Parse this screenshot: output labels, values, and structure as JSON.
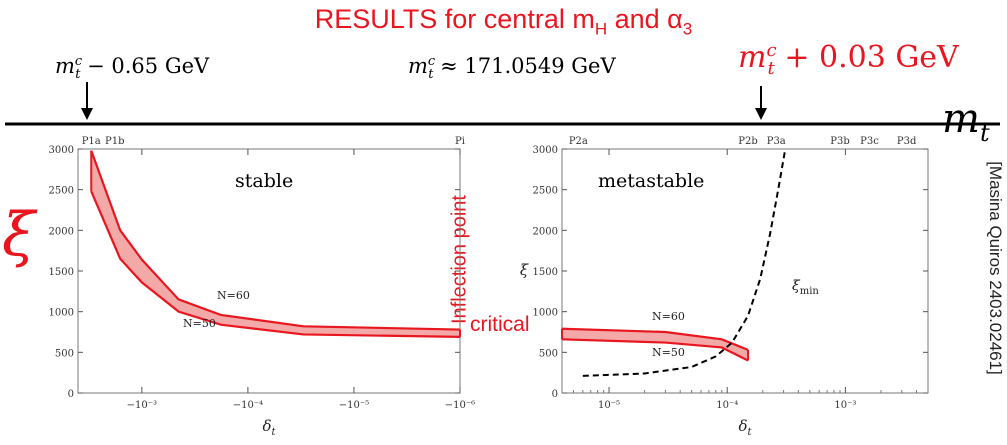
{
  "header": {
    "title_main": "RESULTS for central m",
    "title_sub1": "H",
    "title_mid": " and ",
    "title_alpha": "α",
    "title_sub2": "3"
  },
  "mt_axis": {
    "label_left": "− 0.65 GeV",
    "label_mid": "≈ 171.0549 GeV",
    "label_right": "+ 0.03 GeV",
    "axis_symbol": "m",
    "axis_sub": "t",
    "mtc_base": "m",
    "mtc_sup": "c",
    "mtc_sub": "t"
  },
  "annotations": {
    "xi_left": "ξ",
    "inflection": "Inflection point",
    "critical": "critical",
    "reference": "[Masina Quiros 2403.02461]"
  },
  "colors": {
    "accent": "#e8161f",
    "band_fill": "#f4a9a9",
    "band_edge": "#e8161f",
    "dashed": "#000000"
  },
  "chart_data": [
    {
      "type": "area",
      "panel_label": "stable",
      "xlabel": "δ",
      "xlabel_sub": "t",
      "ylabel": "",
      "x_scale": "-log",
      "xlim": [
        -0.004,
        -1e-06
      ],
      "ylim": [
        0,
        3000
      ],
      "y_ticks": [
        "0",
        "500",
        "1000",
        "1500",
        "2000",
        "2500",
        "3000"
      ],
      "x_ticks": [
        {
          "x": -0.001,
          "label": "−10⁻³"
        },
        {
          "x": -0.0001,
          "label": "−10⁻⁴"
        },
        {
          "x": -1e-05,
          "label": "−10⁻⁵"
        },
        {
          "x": -1e-06,
          "label": "−10⁻⁶"
        }
      ],
      "top_labels": [
        {
          "x": -0.003,
          "label": "P1a"
        },
        {
          "x": -0.0018,
          "label": "P1b"
        },
        {
          "x": -1e-06,
          "label": "Pi"
        }
      ],
      "series": [
        {
          "name": "N=60",
          "x": [
            -0.003,
            -0.0016,
            -0.001,
            -0.00045,
            -0.00018,
            -3e-05,
            -1e-06
          ],
          "y": [
            2980,
            2000,
            1640,
            1150,
            960,
            820,
            780
          ]
        },
        {
          "name": "N=50",
          "x": [
            -0.003,
            -0.0016,
            -0.001,
            -0.00045,
            -0.00018,
            -3e-05,
            -1e-06
          ],
          "y": [
            2480,
            1650,
            1360,
            1000,
            840,
            720,
            690
          ]
        }
      ]
    },
    {
      "type": "area",
      "panel_label": "metastable",
      "xlabel": "δ",
      "xlabel_sub": "t",
      "ylabel": "ξ",
      "x_scale": "log",
      "xlim": [
        4e-06,
        0.005
      ],
      "ylim": [
        0,
        3000
      ],
      "y_ticks": [
        "0",
        "500",
        "1000",
        "1500",
        "2000",
        "2500",
        "3000"
      ],
      "x_ticks": [
        {
          "x": 1e-05,
          "label": "10⁻⁵"
        },
        {
          "x": 0.0001,
          "label": "10⁻⁴"
        },
        {
          "x": 0.001,
          "label": "10⁻³"
        }
      ],
      "top_labels": [
        {
          "x": 5.5e-06,
          "label": "P2a"
        },
        {
          "x": 0.00015,
          "label": "P2b"
        },
        {
          "x": 0.00026,
          "label": "P3a"
        },
        {
          "x": 0.0009,
          "label": "P3b"
        },
        {
          "x": 0.0016,
          "label": "P3c"
        },
        {
          "x": 0.0033,
          "label": "P3d"
        }
      ],
      "series": [
        {
          "name": "N=60",
          "x": [
            4e-06,
            3e-05,
            9e-05,
            0.00015
          ],
          "y": [
            790,
            750,
            660,
            530
          ]
        },
        {
          "name": "N=50",
          "x": [
            4e-06,
            3e-05,
            9e-05,
            0.00015
          ],
          "y": [
            660,
            620,
            560,
            400
          ]
        },
        {
          "name": "ξ_min",
          "label_main": "ξ",
          "label_sub": "min",
          "style": "dashed",
          "x": [
            6e-06,
            2e-05,
            5e-05,
            8e-05,
            0.00011,
            0.00015,
            0.00019,
            0.00023,
            0.00027,
            0.00031
          ],
          "y": [
            210,
            240,
            320,
            450,
            620,
            950,
            1400,
            1950,
            2500,
            3000
          ]
        }
      ]
    }
  ]
}
